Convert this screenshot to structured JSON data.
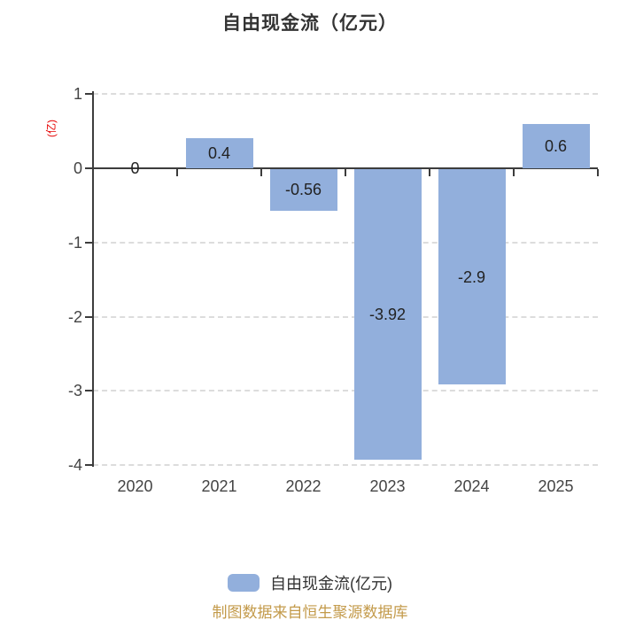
{
  "title": "自由现金流（亿元）",
  "y_axis_unit_label": "(亿)",
  "legend": {
    "label": "自由现金流(亿元)"
  },
  "footer": "制图数据来自恒生聚源数据库",
  "colors": {
    "bar": "#92AFDC",
    "axis": "#3c3c3c",
    "grid": "#dcdcdc",
    "tick_text": "#444444",
    "value_text": "#222222",
    "title_text": "#333333",
    "unit_text": "#e60000",
    "footer_text": "#c39a4a",
    "legend_text": "#333333"
  },
  "chart_data": {
    "type": "bar",
    "title": "自由现金流（亿元）",
    "categories": [
      "2020",
      "2021",
      "2022",
      "2023",
      "2024",
      "2025"
    ],
    "series": [
      {
        "name": "自由现金流(亿元)",
        "values": [
          0,
          0.4,
          -0.56,
          -3.92,
          -2.9,
          0.6
        ]
      }
    ],
    "value_labels": [
      "0",
      "0.4",
      "-0.56",
      "-3.92",
      "-2.9",
      "0.6"
    ],
    "xlabel": "",
    "ylabel": "(亿)",
    "ylim": [
      -4,
      1
    ],
    "yticks": [
      1,
      0,
      -1,
      -2,
      -3,
      -4
    ],
    "grid": "horizontal-dashed",
    "legend_position": "bottom"
  }
}
